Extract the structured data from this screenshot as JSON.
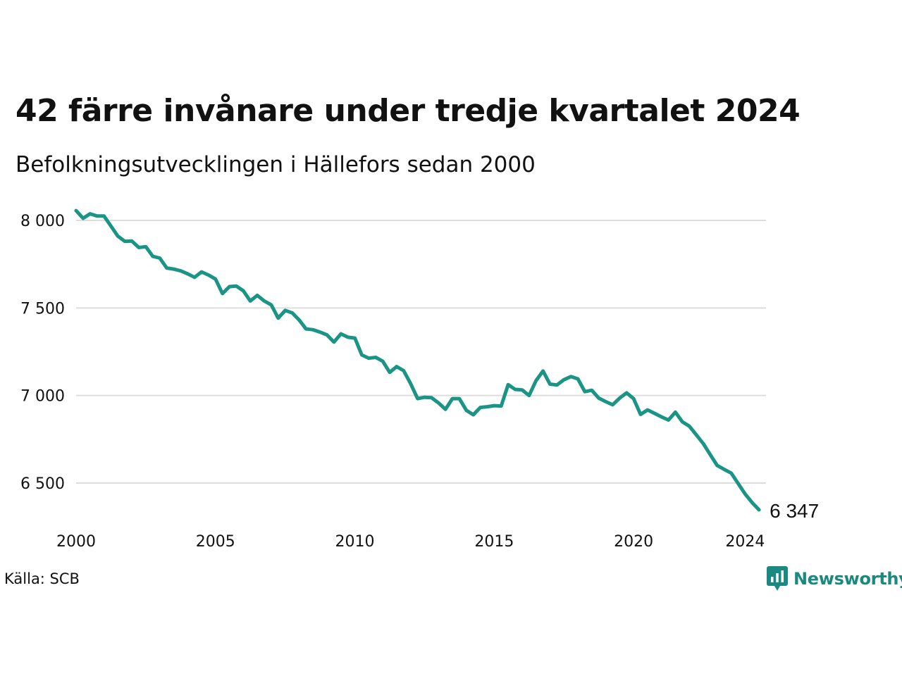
{
  "title": "42 färre invånare under tredje kvartalet 2024",
  "subtitle": "Befolkningsutvecklingen i Hällefors sedan 2000",
  "source": "Källa: SCB",
  "brand": "Newsworthy",
  "colors": {
    "line": "#1a9485",
    "grid": "#dddddd",
    "brand": "#1a8a80"
  },
  "chart_data": {
    "type": "line",
    "title": "42 färre invånare under tredje kvartalet 2024",
    "subtitle": "Befolkningsutvecklingen i Hällefors sedan 2000",
    "xlabel": "",
    "ylabel": "",
    "xlim": [
      2000,
      2024.75
    ],
    "ylim": [
      6300,
      8060
    ],
    "grid": "horizontal",
    "legend": "none",
    "x_ticks": [
      {
        "value": 2000,
        "label": "2000"
      },
      {
        "value": 2005,
        "label": "2005"
      },
      {
        "value": 2010,
        "label": "2010"
      },
      {
        "value": 2015,
        "label": "2015"
      },
      {
        "value": 2020,
        "label": "2020"
      },
      {
        "value": 2024,
        "label": "2024"
      }
    ],
    "y_ticks": [
      {
        "value": 6500,
        "label": "6 500"
      },
      {
        "value": 7000,
        "label": "7 000"
      },
      {
        "value": 7500,
        "label": "7 500"
      },
      {
        "value": 8000,
        "label": "8 000"
      }
    ],
    "end_label": "6 347",
    "series": [
      {
        "values": [
          {
            "x": "2000-Q1",
            "y": 8056
          },
          {
            "x": "2000-Q2",
            "y": 8012
          },
          {
            "x": "2000-Q3",
            "y": 8038
          },
          {
            "x": "2000-Q4",
            "y": 8025
          },
          {
            "x": "2001-Q1",
            "y": 8025
          },
          {
            "x": "2001-Q2",
            "y": 7968
          },
          {
            "x": "2001-Q3",
            "y": 7910
          },
          {
            "x": "2001-Q4",
            "y": 7880
          },
          {
            "x": "2002-Q1",
            "y": 7882
          },
          {
            "x": "2002-Q2",
            "y": 7845
          },
          {
            "x": "2002-Q3",
            "y": 7850
          },
          {
            "x": "2002-Q4",
            "y": 7795
          },
          {
            "x": "2003-Q1",
            "y": 7785
          },
          {
            "x": "2003-Q2",
            "y": 7728
          },
          {
            "x": "2003-Q3",
            "y": 7722
          },
          {
            "x": "2003-Q4",
            "y": 7712
          },
          {
            "x": "2004-Q1",
            "y": 7695
          },
          {
            "x": "2004-Q2",
            "y": 7675
          },
          {
            "x": "2004-Q3",
            "y": 7706
          },
          {
            "x": "2004-Q4",
            "y": 7688
          },
          {
            "x": "2005-Q1",
            "y": 7665
          },
          {
            "x": "2005-Q2",
            "y": 7582
          },
          {
            "x": "2005-Q3",
            "y": 7622
          },
          {
            "x": "2005-Q4",
            "y": 7625
          },
          {
            "x": "2006-Q1",
            "y": 7598
          },
          {
            "x": "2006-Q2",
            "y": 7540
          },
          {
            "x": "2006-Q3",
            "y": 7572
          },
          {
            "x": "2006-Q4",
            "y": 7540
          },
          {
            "x": "2007-Q1",
            "y": 7518
          },
          {
            "x": "2007-Q2",
            "y": 7442
          },
          {
            "x": "2007-Q3",
            "y": 7486
          },
          {
            "x": "2007-Q4",
            "y": 7472
          },
          {
            "x": "2008-Q1",
            "y": 7432
          },
          {
            "x": "2008-Q2",
            "y": 7380
          },
          {
            "x": "2008-Q3",
            "y": 7376
          },
          {
            "x": "2008-Q4",
            "y": 7362
          },
          {
            "x": "2009-Q1",
            "y": 7346
          },
          {
            "x": "2009-Q2",
            "y": 7305
          },
          {
            "x": "2009-Q3",
            "y": 7352
          },
          {
            "x": "2009-Q4",
            "y": 7333
          },
          {
            "x": "2010-Q1",
            "y": 7328
          },
          {
            "x": "2010-Q2",
            "y": 7232
          },
          {
            "x": "2010-Q3",
            "y": 7213
          },
          {
            "x": "2010-Q4",
            "y": 7218
          },
          {
            "x": "2011-Q1",
            "y": 7196
          },
          {
            "x": "2011-Q2",
            "y": 7132
          },
          {
            "x": "2011-Q3",
            "y": 7165
          },
          {
            "x": "2011-Q4",
            "y": 7142
          },
          {
            "x": "2012-Q1",
            "y": 7068
          },
          {
            "x": "2012-Q2",
            "y": 6982
          },
          {
            "x": "2012-Q3",
            "y": 6990
          },
          {
            "x": "2012-Q4",
            "y": 6988
          },
          {
            "x": "2013-Q1",
            "y": 6958
          },
          {
            "x": "2013-Q2",
            "y": 6921
          },
          {
            "x": "2013-Q3",
            "y": 6982
          },
          {
            "x": "2013-Q4",
            "y": 6982
          },
          {
            "x": "2014-Q1",
            "y": 6915
          },
          {
            "x": "2014-Q2",
            "y": 6890
          },
          {
            "x": "2014-Q3",
            "y": 6932
          },
          {
            "x": "2014-Q4",
            "y": 6936
          },
          {
            "x": "2015-Q1",
            "y": 6942
          },
          {
            "x": "2015-Q2",
            "y": 6940
          },
          {
            "x": "2015-Q3",
            "y": 7062
          },
          {
            "x": "2015-Q4",
            "y": 7035
          },
          {
            "x": "2016-Q1",
            "y": 7032
          },
          {
            "x": "2016-Q2",
            "y": 7000
          },
          {
            "x": "2016-Q3",
            "y": 7085
          },
          {
            "x": "2016-Q4",
            "y": 7140
          },
          {
            "x": "2017-Q1",
            "y": 7065
          },
          {
            "x": "2017-Q2",
            "y": 7060
          },
          {
            "x": "2017-Q3",
            "y": 7090
          },
          {
            "x": "2017-Q4",
            "y": 7108
          },
          {
            "x": "2018-Q1",
            "y": 7095
          },
          {
            "x": "2018-Q2",
            "y": 7022
          },
          {
            "x": "2018-Q3",
            "y": 7030
          },
          {
            "x": "2018-Q4",
            "y": 6985
          },
          {
            "x": "2019-Q1",
            "y": 6965
          },
          {
            "x": "2019-Q2",
            "y": 6947
          },
          {
            "x": "2019-Q3",
            "y": 6985
          },
          {
            "x": "2019-Q4",
            "y": 7015
          },
          {
            "x": "2020-Q1",
            "y": 6982
          },
          {
            "x": "2020-Q2",
            "y": 6892
          },
          {
            "x": "2020-Q3",
            "y": 6918
          },
          {
            "x": "2020-Q4",
            "y": 6898
          },
          {
            "x": "2021-Q1",
            "y": 6878
          },
          {
            "x": "2021-Q2",
            "y": 6860
          },
          {
            "x": "2021-Q3",
            "y": 6905
          },
          {
            "x": "2021-Q4",
            "y": 6850
          },
          {
            "x": "2022-Q1",
            "y": 6825
          },
          {
            "x": "2022-Q2",
            "y": 6775
          },
          {
            "x": "2022-Q3",
            "y": 6725
          },
          {
            "x": "2022-Q4",
            "y": 6662
          },
          {
            "x": "2023-Q1",
            "y": 6600
          },
          {
            "x": "2023-Q2",
            "y": 6578
          },
          {
            "x": "2023-Q3",
            "y": 6557
          },
          {
            "x": "2023-Q4",
            "y": 6498
          },
          {
            "x": "2024-Q1",
            "y": 6438
          },
          {
            "x": "2024-Q2",
            "y": 6389
          },
          {
            "x": "2024-Q3",
            "y": 6347
          }
        ]
      }
    ]
  }
}
